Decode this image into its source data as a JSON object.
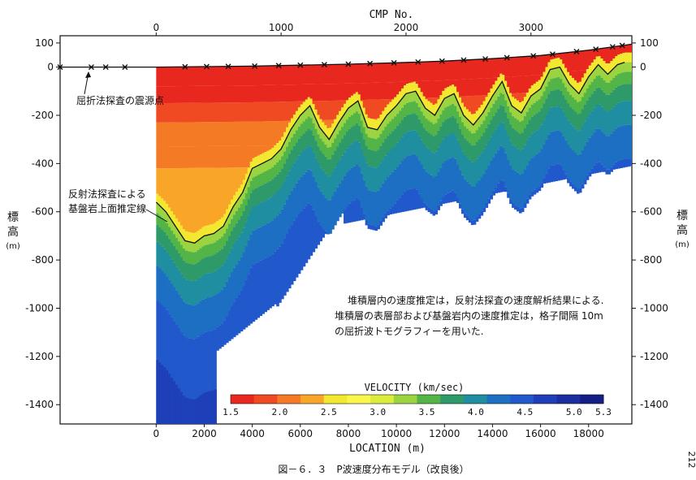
{
  "chart_data": {
    "type": "heatmap",
    "title": "",
    "top_axis": {
      "label": "CMP No.",
      "ticks": [
        0,
        1000,
        2000,
        3000
      ]
    },
    "bottom_axis": {
      "label": "LOCATION (m)",
      "ticks": [
        0,
        2000,
        4000,
        6000,
        8000,
        10000,
        12000,
        14000,
        16000,
        18000
      ],
      "range": [
        -4000,
        19800
      ]
    },
    "left_axis": {
      "label_chars": [
        "標",
        "高"
      ],
      "unit": "(m)",
      "ticks": [
        100,
        0,
        -200,
        -400,
        -600,
        -800,
        -1000,
        -1200,
        -1400
      ],
      "range": [
        -1480,
        130
      ]
    },
    "right_axis": {
      "label_chars": [
        "標",
        "高"
      ],
      "unit": "(m)",
      "ticks": [
        100,
        0,
        -200,
        -400,
        -600,
        -800,
        -1000,
        -1200,
        -1400
      ]
    },
    "colorbar": {
      "label": "VELOCITY (km/sec)",
      "tick_labels": [
        "1.5",
        "2.0",
        "2.5",
        "3.0",
        "3.5",
        "4.0",
        "4.5",
        "5.0",
        "5.3"
      ],
      "colors": [
        "#e8281e",
        "#ef4a22",
        "#f57a25",
        "#f9a528",
        "#f3e830",
        "#fbf64a",
        "#dcec3c",
        "#9bd440",
        "#53b447",
        "#2e9a6a",
        "#1e8ea0",
        "#1c6fc2",
        "#2158cc",
        "#1e3fb8",
        "#1a2ea0",
        "#141f85"
      ]
    },
    "series": [
      {
        "name": "反射法探査による基盤岩上面推定線",
        "x": [
          0,
          400,
          800,
          1200,
          1600,
          2000,
          2400,
          2800,
          3200,
          3600,
          4000,
          4400,
          4800,
          5200,
          5600,
          6000,
          6400,
          6800,
          7200,
          7600,
          8000,
          8400,
          8800,
          9200,
          9600,
          10000,
          10400,
          10800,
          11200,
          11600,
          12000,
          12400,
          12800,
          13200,
          13600,
          14000,
          14400,
          14800,
          15200,
          15600,
          16000,
          16400,
          16800,
          17200,
          17600,
          18000,
          18400,
          18800,
          19200,
          19500
        ],
        "y": [
          -560,
          -600,
          -660,
          -720,
          -730,
          -700,
          -690,
          -660,
          -580,
          -520,
          -420,
          -400,
          -380,
          -340,
          -260,
          -200,
          -160,
          -250,
          -300,
          -230,
          -170,
          -140,
          -250,
          -260,
          -200,
          -160,
          -110,
          -100,
          -170,
          -200,
          -130,
          -110,
          -200,
          -240,
          -190,
          -120,
          -60,
          -160,
          -190,
          -120,
          -90,
          -10,
          0,
          -70,
          -110,
          -40,
          10,
          -30,
          10,
          20
        ]
      }
    ],
    "surface_elevation": {
      "x": [
        -4000,
        0,
        2000,
        4000,
        6000,
        8000,
        10000,
        12000,
        14000,
        16000,
        18000,
        19800
      ],
      "y": [
        0,
        0,
        2,
        4,
        8,
        12,
        18,
        25,
        35,
        48,
        70,
        95
      ]
    },
    "refraction_source_points_x": [
      -4000,
      -2700,
      -2100,
      -1300,
      1200,
      2100,
      3000,
      4100,
      5100,
      6000,
      7000,
      8000,
      8900,
      9900,
      10900,
      11900,
      12800,
      13700,
      14600,
      15700,
      16500,
      17500,
      18300,
      19000,
      19400
    ],
    "annotations": {
      "source_label": "屈折法探査の震源点",
      "line_label_1": "反射法探査による",
      "line_label_2": "基盤岩上面推定線",
      "note_1": "堆積層内の速度推定は，反射法探査の速度解析結果による.",
      "note_2": "堆積層の表層部および基盤岩内の速度推定は，格子間隔 10m",
      "note_3": "の屈折波トモグラフィーを用いた."
    },
    "caption": "図－６．３　P波速度分布モデル（改良後）",
    "page_number": "212"
  }
}
